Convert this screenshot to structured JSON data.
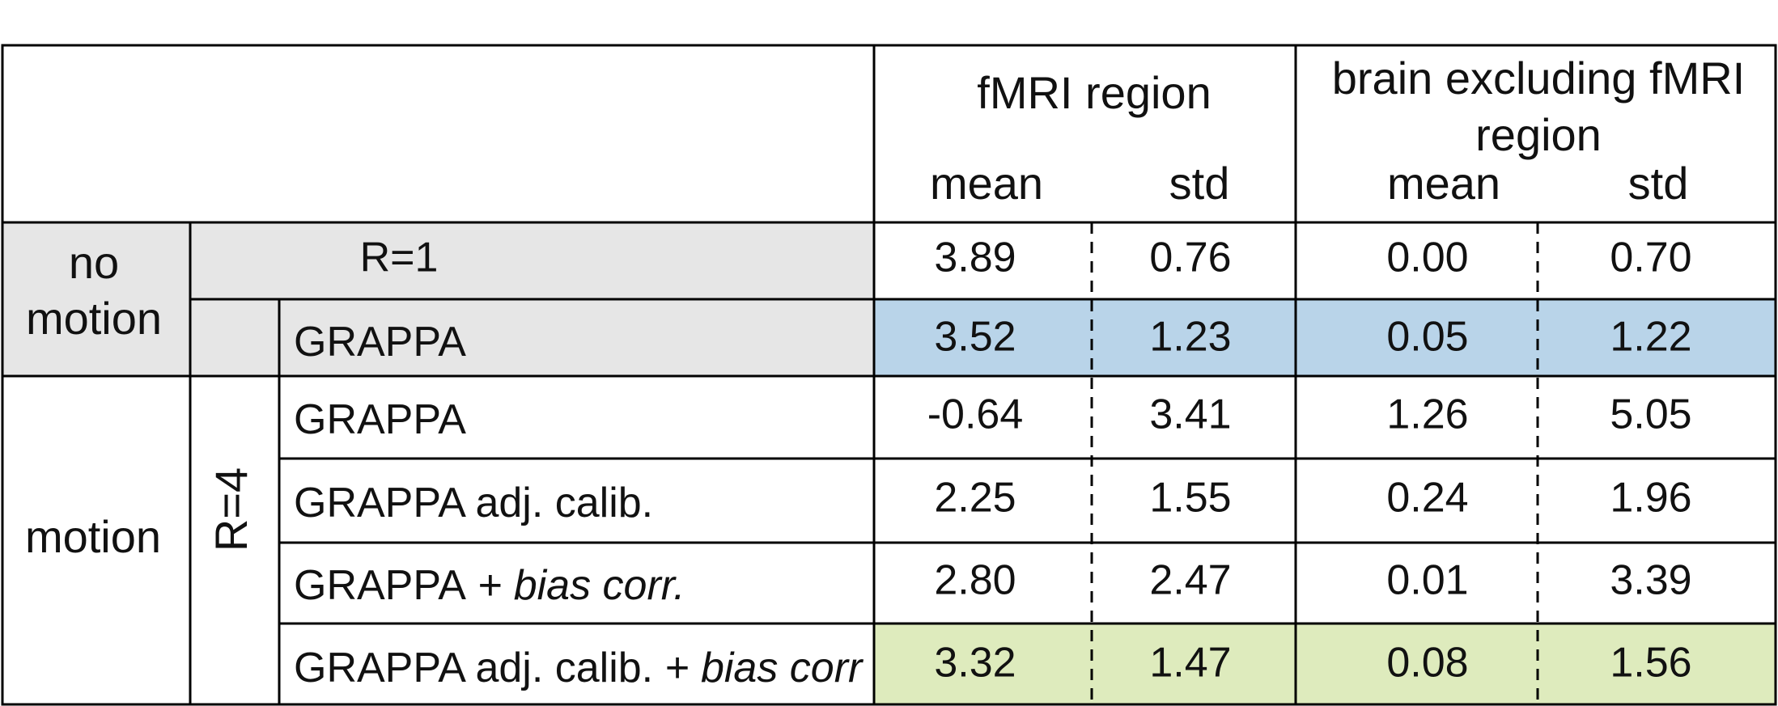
{
  "header": {
    "group_1": "fMRI region",
    "group_2_lines": [
      "brain excluding fMRI",
      "region"
    ],
    "subheaders": [
      "mean",
      "std",
      "mean",
      "std"
    ]
  },
  "row_groups": {
    "no_motion_lines": [
      "no",
      "motion"
    ],
    "motion": "motion",
    "r1": "R=1",
    "r4": "R=4"
  },
  "rows": [
    {
      "values": [
        "3.89",
        "0.76",
        "0.00",
        "0.70"
      ]
    },
    {
      "method": "GRAPPA",
      "values": [
        "3.52",
        "1.23",
        "0.05",
        "1.22"
      ]
    },
    {
      "method": "GRAPPA",
      "values": [
        "-0.64",
        "3.41",
        "1.26",
        "5.05"
      ]
    },
    {
      "method": "GRAPPA adj. calib.",
      "values": [
        "2.25",
        "1.55",
        "0.24",
        "1.96"
      ]
    },
    {
      "method": "GRAPPA",
      "method_italic": "+ bias corr.",
      "values": [
        "2.80",
        "2.47",
        "0.01",
        "3.39"
      ]
    },
    {
      "method": "GRAPPA adj. calib.",
      "method_italic": "+ bias corr",
      "values": [
        "3.32",
        "1.47",
        "0.08",
        "1.56"
      ]
    }
  ]
}
